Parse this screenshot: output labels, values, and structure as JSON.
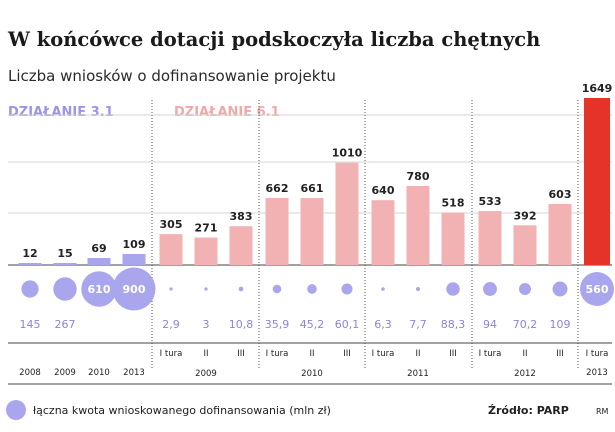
{
  "title": "W końcówce dotacji podskoczyła liczba chętnych",
  "subtitle": "Liczba wniosków o dofinansowanie projektu",
  "section_a": "DZIAŁANIE 3.1",
  "section_b": "DZIAŁANIE 6.1",
  "legend_label": "łączna kwota wnioskowanego dofinansowania (mln zł)",
  "source": "Źródło: PARP",
  "signature": "RM",
  "colors": {
    "bar_a": "#a9a6ee",
    "bar_b": "#f2b2b4",
    "bar_last": "#e5332a",
    "bubble": "#a9a6ee",
    "grid": "#d6d6d6"
  },
  "chart_data": {
    "type": "bar",
    "title": "W końcówce dotacji podskoczyła liczba chętnych",
    "subtitle": "Liczba wniosków o dofinansowanie projektu",
    "categories": [
      "2008",
      "2009",
      "2010",
      "2013",
      "2009 I tura",
      "2009 II",
      "2009 III",
      "2010 I tura",
      "2010 II",
      "2010 III",
      "2011 I tura",
      "2011 II",
      "2011 III",
      "2012 I tura",
      "2012 II",
      "2012 III",
      "2013 I tura"
    ],
    "series": [
      {
        "values": [
          12,
          15,
          69,
          109,
          305,
          271,
          383,
          662,
          661,
          1010,
          640,
          780,
          518,
          533,
          392,
          603,
          1649
        ]
      },
      {
        "name": "łączna kwota wnioskowanego dofinansowania (mln zł)",
        "values": [
          145,
          267,
          610,
          900,
          2.9,
          3,
          10.8,
          35.9,
          45.2,
          60.1,
          6.3,
          7.7,
          88.3,
          94,
          70.2,
          109,
          560
        ]
      }
    ],
    "bar_labels": [
      "12",
      "15",
      "69",
      "109",
      "305",
      "271",
      "383",
      "662",
      "661",
      "1010",
      "640",
      "780",
      "518",
      "533",
      "392",
      "603",
      "1649"
    ],
    "amount_labels": [
      "145",
      "267",
      "610",
      "900",
      "2,9",
      "3",
      "10,8",
      "35,9",
      "45,2",
      "60,1",
      "6,3",
      "7,7",
      "88,3",
      "94",
      "70,2",
      "109",
      "560"
    ],
    "groups": [
      {
        "label": "DZIAŁANIE 3.1",
        "indices": [
          0,
          1,
          2,
          3
        ]
      },
      {
        "label": "DZIAŁANIE 6.1",
        "indices": [
          4,
          5,
          6,
          7,
          8,
          9,
          10,
          11,
          12,
          13,
          14,
          15,
          16
        ]
      }
    ],
    "sub_labels": [
      "",
      "",
      "",
      "",
      "I tura",
      "II",
      "III",
      "I tura",
      "II",
      "III",
      "I tura",
      "II",
      "III",
      "I tura",
      "II",
      "III",
      "I tura"
    ],
    "year_labels": [
      {
        "text": "2008",
        "indices": [
          0
        ]
      },
      {
        "text": "2009",
        "indices": [
          1
        ]
      },
      {
        "text": "2010",
        "indices": [
          2
        ]
      },
      {
        "text": "2013",
        "indices": [
          3
        ]
      },
      {
        "text": "2009",
        "indices": [
          4,
          5,
          6
        ]
      },
      {
        "text": "2010",
        "indices": [
          7,
          8,
          9
        ]
      },
      {
        "text": "2011",
        "indices": [
          10,
          11,
          12
        ]
      },
      {
        "text": "2012",
        "indices": [
          13,
          14,
          15
        ]
      },
      {
        "text": "2013",
        "indices": [
          16
        ]
      }
    ],
    "ylim": [
      0,
      1649
    ],
    "grid": true,
    "legend_position": "bottom-left"
  }
}
